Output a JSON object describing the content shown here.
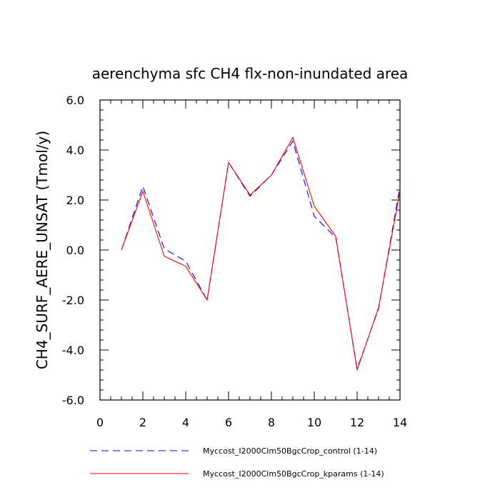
{
  "chart_data": {
    "type": "line",
    "title": "aerenchyma sfc CH4 flx-non-inundated area",
    "xlabel": "",
    "ylabel": "CH4_SURF_AERE_UNSAT  (Tmol/y)",
    "xlim": [
      0,
      14
    ],
    "ylim": [
      -6,
      6
    ],
    "x_ticks": [
      "0",
      "2",
      "4",
      "6",
      "8",
      "10",
      "12",
      "14"
    ],
    "y_ticks": [
      "-6.0",
      "-4.0",
      "-2.0",
      "0.0",
      "2.0",
      "4.0",
      "6.0"
    ],
    "x": [
      1,
      2,
      3,
      4,
      5,
      6,
      7,
      8,
      9,
      10,
      11,
      12,
      13,
      14
    ],
    "series": [
      {
        "name": "Myccost_I2000Clm50BgcCrop_control (1-14)",
        "style": "dashed",
        "color": "#0000ff",
        "values": [
          0.0,
          2.55,
          0.05,
          -0.45,
          -2.0,
          3.5,
          2.15,
          3.0,
          4.35,
          1.35,
          0.5,
          -4.75,
          -2.35,
          2.55
        ]
      },
      {
        "name": "Myccost_I2000Clm50BgcCrop_kparams (1-14)",
        "style": "solid",
        "color": "#ff0000",
        "values": [
          0.0,
          2.35,
          -0.25,
          -0.65,
          -2.0,
          3.5,
          2.2,
          3.0,
          4.5,
          1.75,
          0.55,
          -4.8,
          -2.3,
          2.35
        ]
      }
    ],
    "grid": false,
    "legend_placement": "bottom"
  }
}
